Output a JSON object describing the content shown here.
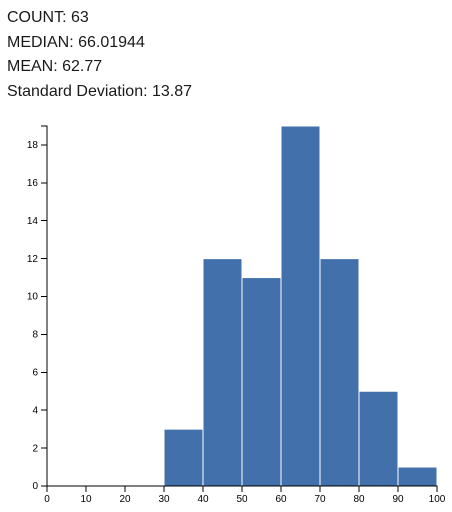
{
  "stats": {
    "count": "COUNT: 63",
    "median": "MEDIAN: 66.01944",
    "mean": "MEAN: 62.77",
    "std": "Standard Deviation: 13.87"
  },
  "chart_data": {
    "type": "bar",
    "title": "",
    "xlabel": "",
    "ylabel": "",
    "bins": [
      {
        "x0": 0,
        "x1": 10,
        "count": 0
      },
      {
        "x0": 10,
        "x1": 20,
        "count": 0
      },
      {
        "x0": 20,
        "x1": 30,
        "count": 0
      },
      {
        "x0": 30,
        "x1": 40,
        "count": 3
      },
      {
        "x0": 40,
        "x1": 50,
        "count": 12
      },
      {
        "x0": 50,
        "x1": 60,
        "count": 11
      },
      {
        "x0": 60,
        "x1": 70,
        "count": 19
      },
      {
        "x0": 70,
        "x1": 80,
        "count": 12
      },
      {
        "x0": 80,
        "x1": 90,
        "count": 5
      },
      {
        "x0": 90,
        "x1": 100,
        "count": 1
      }
    ],
    "xlim": [
      0,
      100
    ],
    "ylim": [
      0,
      19
    ],
    "x_ticks": [
      0,
      10,
      20,
      30,
      40,
      50,
      60,
      70,
      80,
      90,
      100
    ],
    "y_ticks": [
      0,
      2,
      4,
      6,
      8,
      10,
      12,
      14,
      16,
      18
    ],
    "bar_color": "#4270aa"
  }
}
